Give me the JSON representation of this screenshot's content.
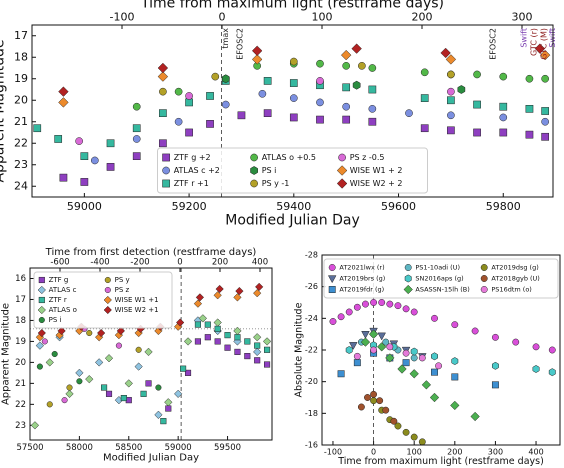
{
  "chart_data": [
    {
      "type": "scatter",
      "xlabel": "Modified Julian Day",
      "ylabel": "Apparent Magnitude",
      "x2label": "Time from maximum light (restframe days)",
      "xlim": [
        58900,
        59895
      ],
      "xticks": [
        59000,
        59200,
        59400,
        59600,
        59800
      ],
      "ylim": [
        24.5,
        16.5
      ],
      "yticks": [
        17,
        18,
        19,
        20,
        21,
        22,
        23,
        24
      ],
      "x2lim": [
        -190,
        331
      ],
      "x2ticks": [
        -100,
        0,
        100,
        200,
        300
      ],
      "vlines": [
        59262
      ],
      "legend_loc": "lower center",
      "legend_ncol": 3,
      "annotations": [
        {
          "text": "tmax",
          "x": 59262,
          "color": "#222222"
        },
        {
          "text": "EFOSC2",
          "x": 59290,
          "color": "#222222"
        },
        {
          "text": "EFOSC2",
          "x": 59773,
          "color": "#222222"
        },
        {
          "text": "Swift",
          "x": 59832,
          "color": "#7b3fb0"
        },
        {
          "text": "GTC (r)",
          "x": 59851,
          "color": "#8b1a1a"
        },
        {
          "text": "GTC (M)",
          "x": 59870,
          "color": "#8b1a1a"
        },
        {
          "text": "Swift",
          "x": 59886,
          "color": "#7b3fb0"
        }
      ],
      "series": [
        {
          "name": "ZTF g +2",
          "color": "#8e3fc0",
          "marker": "square",
          "x": [
            58960,
            59000,
            59050,
            59100,
            59150,
            59200,
            59240,
            59300,
            59350,
            59400,
            59450,
            59500,
            59550,
            59650,
            59700,
            59750,
            59800,
            59850,
            59880
          ],
          "values": [
            23.6,
            23.8,
            23.1,
            22.6,
            22.0,
            21.5,
            21.1,
            20.7,
            20.6,
            20.8,
            20.9,
            20.9,
            21.0,
            21.3,
            21.4,
            21.5,
            21.5,
            21.6,
            21.7
          ]
        },
        {
          "name": "ATLAS c +2",
          "color": "#7b8fe0",
          "marker": "circle",
          "x": [
            59020,
            59100,
            59180,
            59270,
            59340,
            59400,
            59450,
            59500,
            59550,
            59620,
            59700,
            59800,
            59880
          ],
          "values": [
            22.8,
            21.8,
            21.0,
            20.2,
            19.7,
            19.9,
            20.1,
            20.3,
            20.4,
            20.6,
            20.7,
            20.8,
            21.0
          ]
        },
        {
          "name": "ZTF r +1",
          "color": "#35b89f",
          "marker": "square",
          "x": [
            58910,
            58950,
            59000,
            59050,
            59100,
            59150,
            59200,
            59240,
            59270,
            59350,
            59400,
            59450,
            59500,
            59550,
            59650,
            59700,
            59750,
            59800,
            59850,
            59880
          ],
          "values": [
            21.3,
            21.8,
            22.6,
            22.0,
            21.3,
            20.6,
            20.1,
            19.8,
            19.1,
            19.1,
            19.2,
            19.3,
            19.4,
            19.5,
            19.9,
            20.0,
            20.2,
            20.3,
            20.4,
            20.5
          ]
        },
        {
          "name": "ATLAS o +0.5",
          "color": "#52b848",
          "marker": "circle",
          "x": [
            59100,
            59180,
            59270,
            59330,
            59400,
            59450,
            59500,
            59550,
            59650,
            59700,
            59750,
            59800,
            59850,
            59880
          ],
          "values": [
            20.3,
            19.6,
            19.0,
            18.4,
            18.3,
            18.3,
            18.4,
            18.5,
            18.7,
            18.8,
            18.8,
            18.9,
            19.0,
            19.0
          ]
        },
        {
          "name": "PS i",
          "color": "#2a8c3f",
          "marker": "hexagon",
          "x": [
            59270,
            59520,
            59720
          ],
          "values": [
            19.0,
            19.3,
            19.5
          ]
        },
        {
          "name": "PS y -1",
          "color": "#b3a128",
          "marker": "circle",
          "x": [
            59150,
            59250,
            59400,
            59530,
            59700
          ],
          "values": [
            19.6,
            18.9,
            18.2,
            18.4,
            18.8
          ]
        },
        {
          "name": "PS z -0.5",
          "color": "#d86ad6",
          "marker": "circle",
          "x": [
            58990,
            59200,
            59450,
            59700
          ],
          "values": [
            21.9,
            19.8,
            19.1,
            19.6
          ]
        },
        {
          "name": "WISE W1 + 2",
          "color": "#ec8a2c",
          "marker": "diamond",
          "x": [
            58960,
            59150,
            59330,
            59500,
            59700,
            59880
          ],
          "values": [
            20.1,
            18.9,
            18.1,
            17.9,
            18.1,
            17.9
          ]
        },
        {
          "name": "WISE W2 + 2",
          "color": "#b22222",
          "marker": "diamond",
          "x": [
            58960,
            59150,
            59330,
            59520,
            59690,
            59870
          ],
          "values": [
            19.6,
            18.5,
            17.7,
            17.6,
            17.8,
            17.6
          ]
        }
      ]
    },
    {
      "type": "scatter",
      "xlabel": "Modified Julian Day",
      "ylabel": "Apparent Magnitude",
      "x2label": "Time from first detection (restframe days)",
      "xlim": [
        57500,
        59950
      ],
      "xticks": [
        57500,
        58000,
        58500,
        59000,
        59500
      ],
      "ylim": [
        23.7,
        15.5
      ],
      "yticks": [
        16,
        17,
        18,
        19,
        20,
        21,
        22,
        23
      ],
      "x2lim": [
        -750,
        460
      ],
      "x2ticks": [
        -600,
        -400,
        -200,
        0,
        200,
        400
      ],
      "vlines": [
        59030
      ],
      "hlines": [
        18.4
      ],
      "legend_loc": "upper left",
      "legend_ncol": 2,
      "series": [
        {
          "name": "ZTF g",
          "color": "#8e3fc0",
          "marker": "square",
          "x": [
            58300,
            58500,
            58700,
            58900,
            59100,
            59200,
            59300,
            59400,
            59500,
            59600,
            59700,
            59800,
            59900
          ],
          "values": [
            21.5,
            21.8,
            21.0,
            22.2,
            20.5,
            19.0,
            18.8,
            19.0,
            19.3,
            19.5,
            19.7,
            19.9,
            20.1
          ]
        },
        {
          "name": "ATLAS c",
          "color": "#8fc3e0",
          "marker": "diamond",
          "x": [
            57600,
            57800,
            58000,
            58200,
            58400,
            58600,
            58800,
            59000,
            59200,
            59400,
            59600,
            59800
          ],
          "values": [
            19.2,
            18.8,
            20.5,
            20.0,
            21.8,
            20.2,
            22.5,
            21.5,
            18.0,
            18.5,
            19.0,
            19.5
          ]
        },
        {
          "name": "ZTF r",
          "color": "#35b89f",
          "marker": "square",
          "x": [
            58250,
            58450,
            58650,
            58850,
            59050,
            59200,
            59300,
            59400,
            59500,
            59600,
            59700,
            59800,
            59900
          ],
          "values": [
            21.2,
            21.7,
            21.5,
            22.8,
            20.3,
            18.2,
            18.2,
            18.4,
            18.7,
            18.8,
            19.0,
            19.2,
            19.4
          ]
        },
        {
          "name": "ATLAS o",
          "color": "#9ad18a",
          "marker": "diamond",
          "x": [
            57550,
            57700,
            57900,
            58100,
            58300,
            58500,
            58700,
            58900,
            59100,
            59250,
            59400,
            59600,
            59800,
            59900
          ],
          "values": [
            23.0,
            20.0,
            21.5,
            20.8,
            19.8,
            21.0,
            19.5,
            21.9,
            19.0,
            17.9,
            18.1,
            18.5,
            18.8,
            19.0
          ]
        },
        {
          "name": "PS i",
          "color": "#2a8c3f",
          "marker": "circle",
          "x": [
            57600,
            57750,
            58000,
            58800
          ],
          "values": [
            20.2,
            19.6,
            20.9,
            21.2
          ]
        },
        {
          "name": "PS y",
          "color": "#b3a128",
          "marker": "circle",
          "x": [
            57700,
            57900,
            58100,
            58600
          ],
          "values": [
            22.0,
            21.2,
            18.6,
            19.4
          ]
        },
        {
          "name": "PS z",
          "color": "#d86ad6",
          "marker": "circle",
          "x": [
            57650,
            57850,
            58050,
            58400
          ],
          "values": [
            19.0,
            21.8,
            18.4,
            19.2
          ]
        },
        {
          "name": "WISE W1 +1",
          "color": "#ec8a2c",
          "marker": "diamond",
          "x": [
            57600,
            57800,
            58000,
            58200,
            58400,
            58600,
            58800,
            59000,
            59200,
            59400,
            59600,
            59800
          ],
          "values": [
            18.8,
            18.7,
            18.5,
            18.8,
            18.7,
            18.6,
            18.5,
            18.3,
            17.2,
            16.8,
            16.9,
            16.7
          ]
        },
        {
          "name": "WISE W2 +1",
          "color": "#b22222",
          "marker": "diamond",
          "x": [
            57620,
            57820,
            58020,
            58220,
            58420,
            58620,
            58820,
            59020,
            59220,
            59420,
            59620,
            59820
          ],
          "values": [
            18.6,
            18.5,
            18.3,
            18.6,
            18.5,
            18.4,
            18.3,
            18.1,
            16.9,
            16.5,
            16.6,
            16.4
          ]
        }
      ]
    },
    {
      "type": "scatter",
      "xlabel": "Time from maximum light (restframe days)",
      "ylabel": "Absolute Magnitude",
      "xlim": [
        -127,
        459
      ],
      "xticks": [
        -100,
        0,
        100,
        200,
        300,
        400
      ],
      "ylim": [
        -16,
        -28
      ],
      "yticks": [
        -16,
        -18,
        -20,
        -22,
        -24,
        -26,
        -28
      ],
      "vlines": [
        0
      ],
      "legend_loc": "upper center",
      "legend_ncol": 3,
      "series": [
        {
          "name": "AT2021lwx (r)",
          "color": "#d94fd9",
          "marker": "circle",
          "x": [
            -100,
            -80,
            -60,
            -40,
            -20,
            0,
            20,
            40,
            60,
            80,
            100,
            150,
            200,
            250,
            300,
            350,
            400,
            440
          ],
          "values": [
            -23.8,
            -24.1,
            -24.4,
            -24.7,
            -24.9,
            -25.0,
            -25.0,
            -24.9,
            -24.8,
            -24.6,
            -24.4,
            -24.0,
            -23.6,
            -23.2,
            -22.8,
            -22.5,
            -22.2,
            -22.0
          ]
        },
        {
          "name": "AT2019brs (g)",
          "color": "#5b6f9a",
          "marker": "triangle-down",
          "x": [
            -50,
            -20,
            0,
            20,
            50,
            80,
            120
          ],
          "values": [
            -22.3,
            -23.0,
            -23.2,
            -22.9,
            -22.4,
            -22.0,
            -21.6
          ]
        },
        {
          "name": "AT2019fdr (g)",
          "color": "#3d8fd1",
          "marker": "square",
          "x": [
            -80,
            -40,
            0,
            40,
            80,
            150,
            200,
            300
          ],
          "values": [
            -20.5,
            -21.2,
            -21.8,
            -21.5,
            -21.2,
            -20.6,
            -20.3,
            -19.8
          ]
        },
        {
          "name": "PS1-10adi (U)",
          "color": "#5fb7c4",
          "marker": "circle",
          "x": [
            -30,
            0,
            30,
            60,
            100
          ],
          "values": [
            -22.5,
            -23.0,
            -22.5,
            -22.0,
            -21.5
          ]
        },
        {
          "name": "SN2016aps (g)",
          "color": "#49c9c9",
          "marker": "hexagon",
          "x": [
            -60,
            0,
            50,
            100,
            150,
            200,
            300,
            400,
            440
          ],
          "values": [
            -22.0,
            -22.3,
            -22.2,
            -21.9,
            -21.6,
            -21.3,
            -21.0,
            -20.8,
            -20.6
          ]
        },
        {
          "name": "ASASSN-15lh (B)",
          "color": "#4caf50",
          "marker": "diamond",
          "x": [
            -20,
            0,
            20,
            40,
            70,
            100,
            130,
            150,
            200,
            250
          ],
          "values": [
            -22.5,
            -23.0,
            -22.2,
            -21.5,
            -20.8,
            -20.5,
            -19.8,
            -19.0,
            -18.5,
            -17.8
          ]
        },
        {
          "name": "AT2019dsg (g)",
          "color": "#8b8b1e",
          "marker": "circle",
          "x": [
            0,
            20,
            40,
            60,
            80,
            100,
            120
          ],
          "values": [
            -18.8,
            -18.2,
            -17.6,
            -17.2,
            -16.8,
            -16.5,
            -16.2
          ]
        },
        {
          "name": "AT2018gyb (U)",
          "color": "#a0522d",
          "marker": "circle",
          "x": [
            -30,
            -15,
            0,
            15,
            30,
            50
          ],
          "values": [
            -18.4,
            -19.0,
            -19.2,
            -18.8,
            -18.2,
            -17.5
          ]
        },
        {
          "name": "PS16dtm (o)",
          "color": "#e57ad9",
          "marker": "circle",
          "x": [
            -40,
            0,
            40,
            80,
            120,
            160
          ],
          "values": [
            -21.6,
            -22.0,
            -22.2,
            -21.8,
            -21.5,
            -21.0
          ]
        }
      ]
    }
  ]
}
